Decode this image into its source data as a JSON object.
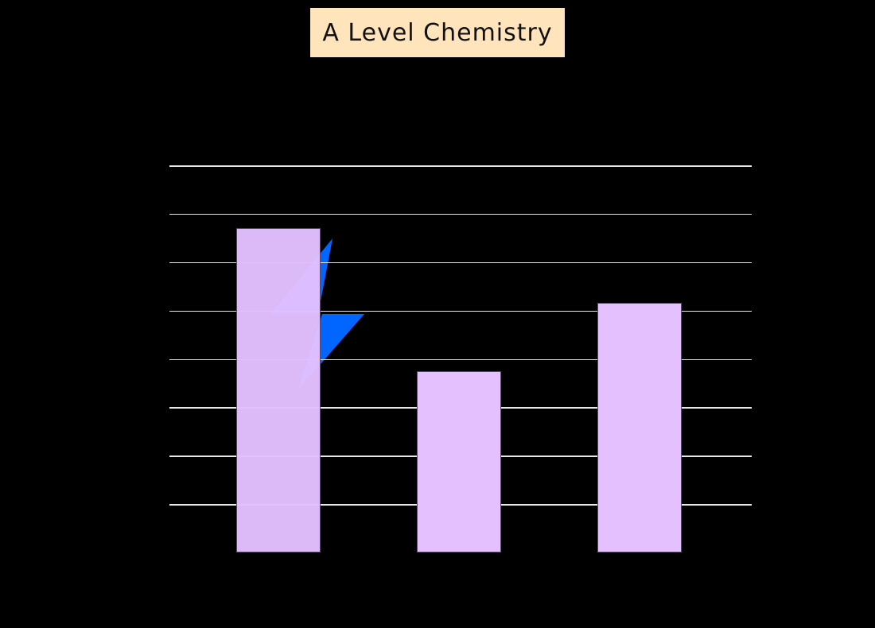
{
  "header": {
    "title": "A Level Chemistry",
    "title_bg": "#FFE4BC"
  },
  "logo": {
    "icon": "lightning-bolt-icon",
    "color": "#0066FF"
  },
  "chart_data": {
    "type": "bar",
    "title": "",
    "xlabel": "",
    "ylabel": "",
    "categories": [
      "",
      "",
      ""
    ],
    "values": [
      6.7,
      3.75,
      5.15
    ],
    "ylim": [
      0,
      8
    ],
    "gridlines": [
      1,
      2,
      3,
      4,
      5,
      6,
      7,
      8
    ],
    "grid": true,
    "legend": null,
    "bar_color": "#E4C0FF",
    "background": "#000000",
    "gridline_color": "#E8E8E8"
  }
}
